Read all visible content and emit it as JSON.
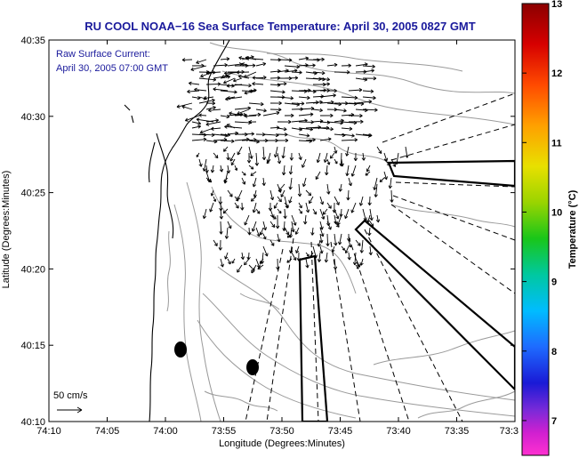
{
  "chart_data": {
    "type": "map",
    "title": "RU COOL  NOAA−16  Sea Surface Temperature:  April 30, 2005 0827 GMT",
    "annotation_lines": [
      "Raw Surface Current:",
      "April 30, 2005 07:00 GMT"
    ],
    "xlabel": "Longitude (Degrees:Minutes)",
    "ylabel": "Latitude (Degrees:Minutes)",
    "x_ticks": [
      "74:10",
      "74:05",
      "74:00",
      "73:55",
      "73:50",
      "73:45",
      "73:40",
      "73:35",
      "73:3"
    ],
    "y_ticks": [
      "40:35",
      "40:30",
      "40:25",
      "40:20",
      "40:15",
      "40:10"
    ],
    "scale_label": "50 cm/s",
    "colorbar": {
      "label": "Temperature (°C)",
      "ticks": [
        "13",
        "12",
        "11",
        "10",
        "9",
        "8",
        "7"
      ],
      "min": 6.5,
      "max": 13
    },
    "colors": {
      "title": "#1a1a9c",
      "coast": "#000000",
      "contour": "#9a9a9a",
      "vector": "#000000"
    }
  }
}
